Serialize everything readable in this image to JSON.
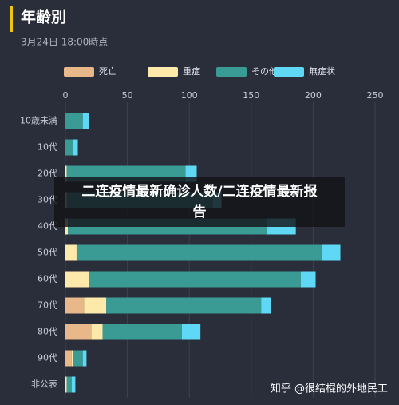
{
  "chart_data": {
    "type": "stacked-barh",
    "title": "年齢別",
    "subtitle": "3月24日 18:00時点",
    "categories": [
      "10歳未満",
      "10代",
      "20代",
      "30代",
      "40代",
      "50代",
      "60代",
      "70代",
      "80代",
      "90代",
      "非公表"
    ],
    "series": [
      {
        "name": "死亡",
        "color": "#e8b88a",
        "values": [
          0,
          0,
          0,
          0,
          0,
          0,
          0,
          15,
          21,
          5,
          0
        ]
      },
      {
        "name": "重症",
        "color": "#fde9a9",
        "values": [
          0,
          0,
          1,
          1,
          2,
          9,
          19,
          18,
          9,
          1,
          1
        ]
      },
      {
        "name": "その他",
        "color": "#3a9a94",
        "values": [
          14,
          6,
          96,
          118,
          161,
          198,
          171,
          125,
          64,
          8,
          4
        ]
      },
      {
        "name": "無症状",
        "color": "#5ed8f5",
        "values": [
          5,
          4,
          9,
          7,
          23,
          15,
          12,
          8,
          15,
          3,
          3
        ]
      }
    ],
    "xlim": [
      0,
      250
    ],
    "xticks": [
      0,
      50,
      100,
      150,
      200,
      250
    ],
    "grid": true,
    "annotations": [
      "二连疫情最新确诊人数/二连疫情最新报告",
      "知乎 @很结棍的外地民工"
    ]
  }
}
